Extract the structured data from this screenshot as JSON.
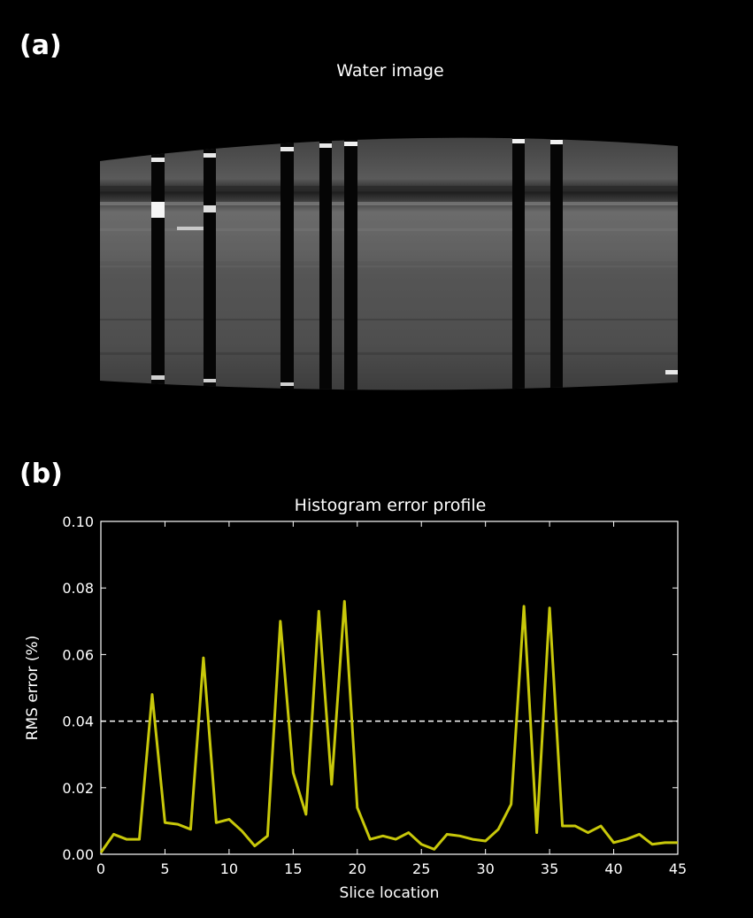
{
  "panel_a": {
    "label": "(a)",
    "title": "Water image"
  },
  "panel_b": {
    "label": "(b)"
  },
  "colors": {
    "background": "#000000",
    "line": "#c8c80a",
    "threshold": "#ffffff",
    "axes": "#ffffff"
  },
  "chart_data": {
    "type": "line",
    "title": "Histogram error profile",
    "xlabel": "Slice location",
    "ylabel": "RMS error (%)",
    "xlim": [
      0,
      45
    ],
    "ylim": [
      0,
      0.1
    ],
    "xticks": [
      0,
      5,
      10,
      15,
      20,
      25,
      30,
      35,
      40,
      45
    ],
    "xtick_labels": [
      "0",
      "5",
      "10",
      "15",
      "20",
      "25",
      "30",
      "35",
      "40",
      "45"
    ],
    "yticks": [
      0,
      0.02,
      0.04,
      0.06,
      0.08,
      0.1
    ],
    "ytick_labels": [
      "0.00",
      "0.02",
      "0.04",
      "0.06",
      "0.08",
      "0.10"
    ],
    "threshold": 0.04,
    "grid": false,
    "series": [
      {
        "x": [
          0,
          1,
          2,
          3,
          4,
          5,
          6,
          7,
          8,
          9,
          10,
          11,
          12,
          13,
          14,
          15,
          16,
          17,
          18,
          19,
          20,
          21,
          22,
          23,
          24,
          25,
          26,
          27,
          28,
          29,
          30,
          31,
          32,
          33,
          34,
          35,
          36,
          37,
          38,
          39,
          40,
          41,
          42,
          43,
          44,
          45
        ],
        "values": [
          0.0005,
          0.006,
          0.0045,
          0.0045,
          0.048,
          0.0095,
          0.009,
          0.0075,
          0.059,
          0.0095,
          0.0105,
          0.007,
          0.0025,
          0.0055,
          0.07,
          0.0245,
          0.012,
          0.073,
          0.021,
          0.076,
          0.014,
          0.0045,
          0.0055,
          0.0045,
          0.0065,
          0.003,
          0.0015,
          0.006,
          0.0055,
          0.0045,
          0.004,
          0.0075,
          0.015,
          0.0745,
          0.0065,
          0.074,
          0.0085,
          0.0085,
          0.0065,
          0.0085,
          0.0035,
          0.0045,
          0.006,
          0.003,
          0.0035,
          0.0035
        ]
      }
    ]
  }
}
